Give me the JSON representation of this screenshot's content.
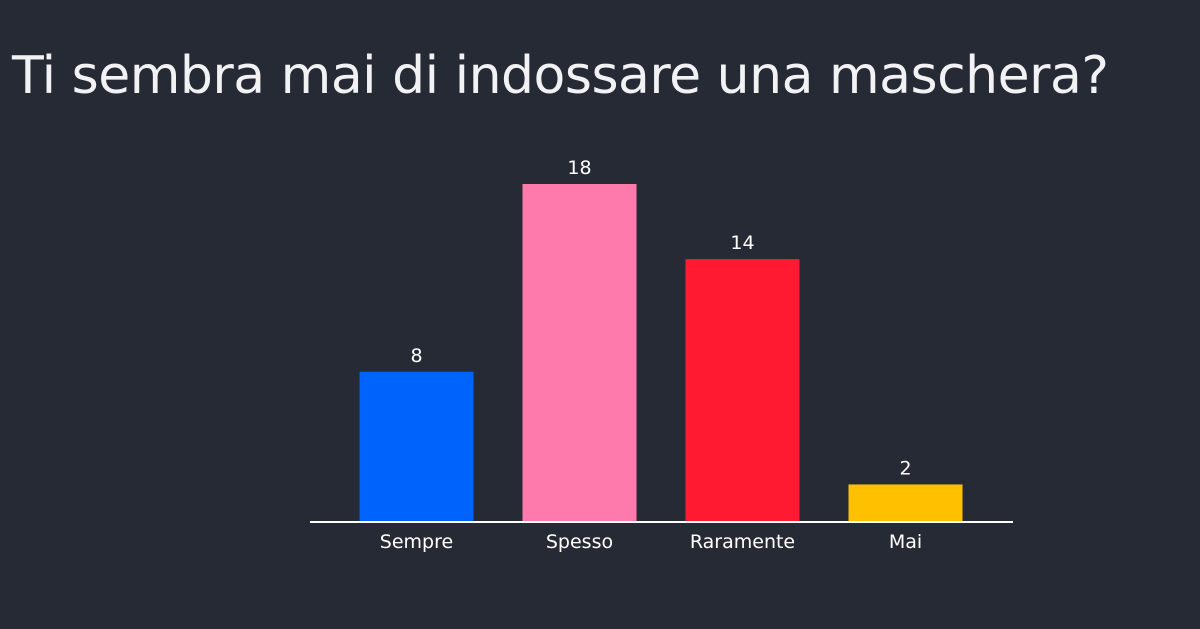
{
  "title": "Ti sembra mai di indossare una maschera?",
  "chart_data": {
    "type": "bar",
    "categories": [
      "Sempre",
      "Spesso",
      "Raramente",
      "Mai"
    ],
    "values": [
      8,
      18,
      14,
      2
    ],
    "colors": [
      "#0063fb",
      "#ff7aac",
      "#ff1a31",
      "#ffc000"
    ],
    "data_labels": [
      "8",
      "18",
      "14",
      "2"
    ],
    "ylim": [
      0,
      18
    ],
    "grid": false,
    "legend": "none",
    "axis_color": "#ffffff"
  }
}
